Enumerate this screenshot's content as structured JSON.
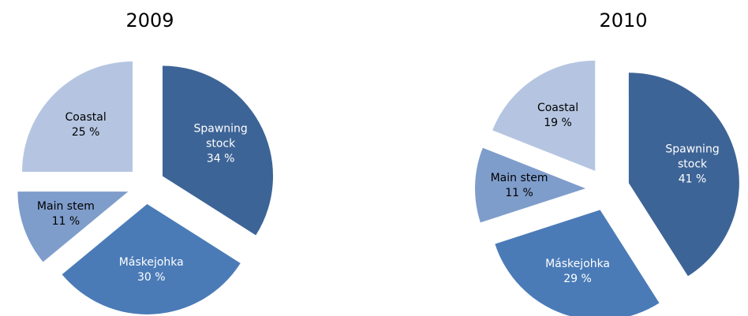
{
  "chart_data": [
    {
      "type": "pie",
      "title": "2009",
      "categories": [
        "Spawning stock",
        "Máskejohka",
        "Main stem",
        "Coastal"
      ],
      "values": [
        34,
        30,
        11,
        25
      ],
      "value_labels": [
        "34 %",
        "30 %",
        "11 %",
        "25 %"
      ],
      "colors": [
        "#3d6496",
        "#4a7bb7",
        "#7f9dcb",
        "#b5c5e1"
      ]
    },
    {
      "type": "pie",
      "title": "2010",
      "categories": [
        "Spawning stock",
        "Máskejohka",
        "Main stem",
        "Coastal"
      ],
      "values": [
        41,
        29,
        11,
        19
      ],
      "value_labels": [
        "41 %",
        "29 %",
        "11 %",
        "19 %"
      ],
      "colors": [
        "#3d6496",
        "#4a7bb7",
        "#7f9dcb",
        "#b5c5e1"
      ]
    }
  ]
}
